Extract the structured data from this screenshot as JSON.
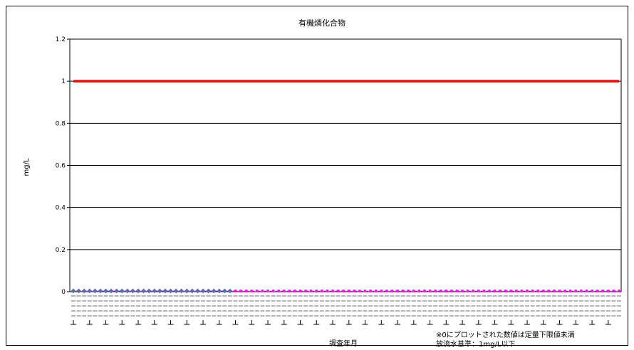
{
  "chart_data": {
    "type": "line",
    "title": "有機燐化合物",
    "xlabel": "調査年月",
    "ylabel": "mg/L",
    "ylim": [
      0,
      1.2
    ],
    "yticks": [
      "0",
      "0.2",
      "0.4",
      "0.6",
      "0.8",
      "1",
      "1.2"
    ],
    "grid": true,
    "series": [
      {
        "role": "standard",
        "color": "#ff0000",
        "values_const": 1
      },
      {
        "role": "measured-early",
        "color": "#2e8b8b",
        "values_const": 0,
        "count": 30
      },
      {
        "role": "measured-late",
        "color": "#ff00ff",
        "values_const": 0,
        "count": 72
      }
    ],
    "notes": [
      "※0にプロットされた数値は定量下限値未満",
      "放流水基準：1mg/L以下"
    ],
    "colors": {
      "standard": "#ff0000",
      "early": "#2e8b8b",
      "late": "#ff00ff"
    }
  }
}
